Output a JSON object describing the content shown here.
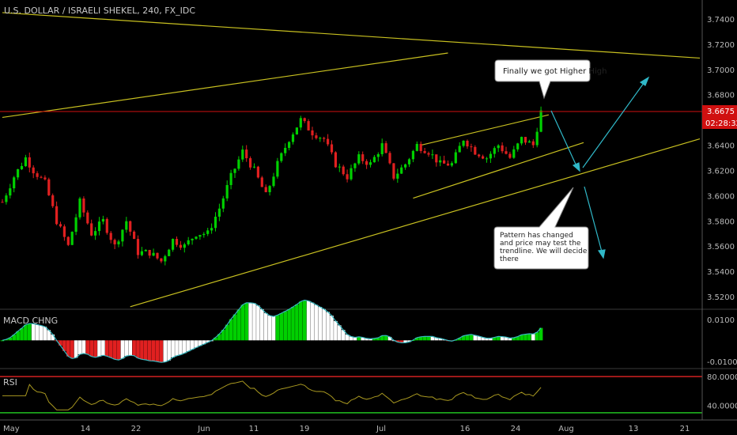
{
  "header": {
    "title": "U.S. DOLLAR / ISRAELI SHEKEL, 240, FX_IDC"
  },
  "price_axis": {
    "ticks": [
      "3.7400",
      "3.7200",
      "3.7000",
      "3.6800",
      "3.6600",
      "3.6400",
      "3.6200",
      "3.6000",
      "3.5800",
      "3.5600",
      "3.5400",
      "3.5200"
    ],
    "tick_values": [
      3.74,
      3.72,
      3.7,
      3.68,
      3.66,
      3.64,
      3.62,
      3.6,
      3.58,
      3.56,
      3.54,
      3.52
    ],
    "last_price": "3.6675",
    "countdown": "02:28:32"
  },
  "macd_pane": {
    "label": "MACD CHNG",
    "ticks": [
      "0.0100",
      "-0.0100"
    ],
    "tick_values": [
      0.01,
      -0.01
    ]
  },
  "rsi_pane": {
    "label": "RSI",
    "ticks": [
      "80.0000",
      "40.0000"
    ],
    "tick_values": [
      80,
      40
    ]
  },
  "time_axis": {
    "labels": [
      "May",
      "14",
      "22",
      "Jun",
      "11",
      "19",
      "Jul",
      "16",
      "24",
      "Aug",
      "13",
      "21"
    ]
  },
  "annotations": {
    "higher_high": "Finally we got Higher High",
    "pattern_lines": [
      "Pattern has changed",
      "and price may test the",
      "trendline. We will decide",
      "there"
    ]
  },
  "colors": {
    "background": "#000000",
    "bull_candle": "#00d000",
    "bear_candle": "#e02020",
    "trendline": "#c8c020",
    "arrow": "#30b8c8",
    "price_line": "#d01010",
    "rsi_line": "#a89820",
    "macd_signal": "#38b8c0",
    "rsi_band_upper": "#d02020",
    "rsi_band_lower": "#20c020"
  },
  "chart_data": {
    "type": "candlestick",
    "symbol": "U.S. DOLLAR / ISRAELI SHEKEL",
    "interval": "240",
    "source": "FX_IDC",
    "price_range": [
      3.51,
      3.755
    ],
    "last_price": 3.6675,
    "close_path": [
      [
        0,
        3.595
      ],
      [
        3,
        3.615
      ],
      [
        6,
        3.63
      ],
      [
        8,
        3.62
      ],
      [
        11,
        3.61
      ],
      [
        14,
        3.58
      ],
      [
        17,
        3.56
      ],
      [
        20,
        3.595
      ],
      [
        23,
        3.57
      ],
      [
        26,
        3.58
      ],
      [
        29,
        3.56
      ],
      [
        32,
        3.58
      ],
      [
        35,
        3.555
      ],
      [
        38,
        3.555
      ],
      [
        41,
        3.548
      ],
      [
        44,
        3.565
      ],
      [
        47,
        3.56
      ],
      [
        50,
        3.57
      ],
      [
        53,
        3.57
      ],
      [
        56,
        3.59
      ],
      [
        59,
        3.615
      ],
      [
        62,
        3.635
      ],
      [
        65,
        3.62
      ],
      [
        68,
        3.6
      ],
      [
        71,
        3.625
      ],
      [
        74,
        3.645
      ],
      [
        77,
        3.66
      ],
      [
        80,
        3.65
      ],
      [
        83,
        3.645
      ],
      [
        86,
        3.625
      ],
      [
        89,
        3.615
      ],
      [
        92,
        3.63
      ],
      [
        95,
        3.625
      ],
      [
        98,
        3.64
      ],
      [
        101,
        3.615
      ],
      [
        104,
        3.625
      ],
      [
        107,
        3.64
      ],
      [
        110,
        3.635
      ],
      [
        113,
        3.625
      ],
      [
        116,
        3.625
      ],
      [
        119,
        3.645
      ],
      [
        122,
        3.635
      ],
      [
        125,
        3.63
      ],
      [
        128,
        3.64
      ],
      [
        131,
        3.63
      ],
      [
        134,
        3.645
      ],
      [
        137,
        3.64
      ],
      [
        139,
        3.667
      ]
    ],
    "trendlines": [
      {
        "name": "upper channel",
        "p1": [
          0,
          3.662
        ],
        "p2": [
          115,
          3.713
        ]
      },
      {
        "name": "long resistance",
        "p1": [
          0,
          3.745
        ],
        "p2": [
          180,
          3.709
        ]
      },
      {
        "name": "lower trendline",
        "p1": [
          33,
          3.512
        ],
        "p2": [
          180,
          3.645
        ]
      },
      {
        "name": "wedge top",
        "p1": [
          108,
          3.64
        ],
        "p2": [
          141,
          3.664
        ]
      },
      {
        "name": "wedge bottom",
        "p1": [
          106,
          3.598
        ],
        "p2": [
          150,
          3.642
        ]
      }
    ],
    "macd_range": [
      -0.0135,
      0.0145
    ],
    "rsi_range": [
      20,
      90
    ],
    "rsi_levels": [
      80,
      30
    ]
  }
}
